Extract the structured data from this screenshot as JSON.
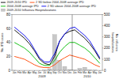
{
  "chart_data": {
    "type": "combo",
    "categories": [
      "Jan",
      "Feb",
      "Mar",
      "Apr",
      "May",
      "Jun",
      "Jul",
      "Aug",
      "Sep",
      "Oct",
      "Nov",
      "Dec",
      "Jan",
      "Feb",
      "Mar",
      "Apr",
      "May",
      "Jun"
    ],
    "annotations": [
      "2009",
      "2010"
    ],
    "y_label": "No. IPD cases",
    "y2_label": "No. influenza\nhospitalizations",
    "series": [
      {
        "name": "2009-2010 IPD",
        "type": "line",
        "color": "#000000",
        "values": [
          58,
          52,
          46,
          38,
          28,
          16,
          10,
          8,
          20,
          42,
          52,
          56,
          58,
          52,
          46,
          38,
          28,
          16
        ]
      },
      {
        "name": "2 SD below 2004-2008 average IPD",
        "type": "line",
        "color": "#ff4400",
        "values": [
          20,
          18,
          16,
          12,
          8,
          5,
          4,
          4,
          8,
          14,
          18,
          22,
          20,
          18,
          16,
          12,
          8,
          5
        ]
      },
      {
        "name": "2004-2008 average IPD",
        "type": "line",
        "color": "#00bb00",
        "values": [
          40,
          36,
          32,
          26,
          18,
          10,
          7,
          7,
          14,
          26,
          34,
          40,
          40,
          36,
          32,
          26,
          18,
          10
        ]
      },
      {
        "name": "2 SD above 2004-2008 average IPD",
        "type": "line",
        "color": "#0000ee",
        "values": [
          62,
          56,
          50,
          42,
          30,
          18,
          12,
          12,
          24,
          42,
          52,
          60,
          62,
          56,
          50,
          42,
          30,
          18
        ]
      },
      {
        "name": "2009-2010 Influenza Hospitalizations",
        "type": "bar",
        "axis": "y2",
        "color": "#c8c8c8",
        "values": [
          1,
          0,
          0,
          0,
          0,
          0,
          3,
          15,
          320,
          90,
          35,
          8,
          4,
          18,
          28,
          6,
          2,
          0
        ]
      }
    ],
    "ylim": [
      0,
      80
    ],
    "yticks": [
      0,
      20,
      40,
      60,
      80
    ],
    "y2lim": [
      0,
      500
    ],
    "y2ticks": [
      0,
      100,
      200,
      300,
      400,
      500
    ],
    "grid": false,
    "legend": "top"
  }
}
